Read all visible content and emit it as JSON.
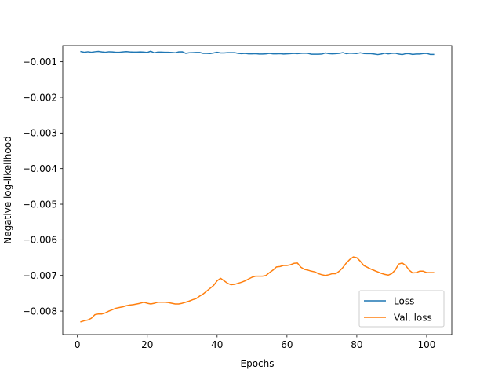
{
  "chart_data": {
    "type": "line",
    "xlabel": "Epochs",
    "ylabel": "Negative log-likelihood",
    "xlim": [
      -4.2,
      107.2
    ],
    "ylim": [
      -0.00866,
      -0.000545
    ],
    "xticks": [
      0,
      20,
      40,
      60,
      80,
      100
    ],
    "xtick_labels": [
      "0",
      "20",
      "40",
      "60",
      "80",
      "100"
    ],
    "yticks": [
      -0.001,
      -0.002,
      -0.003,
      -0.004,
      -0.005,
      -0.006,
      -0.007,
      -0.008
    ],
    "ytick_labels": [
      "−0.001",
      "−0.002",
      "−0.003",
      "−0.004",
      "−0.005",
      "−0.006",
      "−0.007",
      "−0.008"
    ],
    "grid": false,
    "legend_position": "lower-right",
    "series": [
      {
        "name": "Loss",
        "color": "#1f77b4",
        "x": [
          1,
          2,
          3,
          4,
          5,
          6,
          7,
          8,
          9,
          10,
          11,
          12,
          13,
          14,
          15,
          16,
          17,
          18,
          19,
          20,
          21,
          22,
          23,
          24,
          25,
          26,
          27,
          28,
          29,
          30,
          31,
          32,
          33,
          34,
          35,
          36,
          37,
          38,
          39,
          40,
          41,
          42,
          43,
          44,
          45,
          46,
          47,
          48,
          49,
          50,
          51,
          52,
          53,
          54,
          55,
          56,
          57,
          58,
          59,
          60,
          61,
          62,
          63,
          64,
          65,
          66,
          67,
          68,
          69,
          70,
          71,
          72,
          73,
          74,
          75,
          76,
          77,
          78,
          79,
          80,
          81,
          82,
          83,
          84,
          85,
          86,
          87,
          88,
          89,
          90,
          91,
          92,
          93,
          94,
          95,
          96,
          97,
          98,
          99,
          100,
          101,
          102
        ],
        "values": [
          -0.000715,
          -0.000735,
          -0.00072,
          -0.000735,
          -0.00072,
          -0.00071,
          -0.000725,
          -0.000735,
          -0.00072,
          -0.000725,
          -0.000735,
          -0.000735,
          -0.000725,
          -0.000715,
          -0.000725,
          -0.00073,
          -0.00073,
          -0.000725,
          -0.00073,
          -0.00074,
          -0.000705,
          -0.00075,
          -0.00073,
          -0.00073,
          -0.000735,
          -0.000735,
          -0.00074,
          -0.00075,
          -0.000725,
          -0.00072,
          -0.000765,
          -0.00075,
          -0.000745,
          -0.00074,
          -0.00074,
          -0.000765,
          -0.000765,
          -0.00077,
          -0.000755,
          -0.000735,
          -0.000755,
          -0.000755,
          -0.000745,
          -0.000745,
          -0.000745,
          -0.000765,
          -0.000775,
          -0.000765,
          -0.00078,
          -0.00078,
          -0.000775,
          -0.000785,
          -0.000785,
          -0.00078,
          -0.000765,
          -0.00078,
          -0.00078,
          -0.000775,
          -0.000785,
          -0.00078,
          -0.000775,
          -0.000765,
          -0.000775,
          -0.000765,
          -0.00076,
          -0.000765,
          -0.00079,
          -0.00079,
          -0.00079,
          -0.000785,
          -0.000755,
          -0.000775,
          -0.00078,
          -0.000775,
          -0.000765,
          -0.000745,
          -0.000775,
          -0.00076,
          -0.000765,
          -0.00077,
          -0.00075,
          -0.00077,
          -0.000775,
          -0.000775,
          -0.000785,
          -0.0008,
          -0.000785,
          -0.00076,
          -0.00078,
          -0.000765,
          -0.00076,
          -0.000785,
          -0.0008,
          -0.000775,
          -0.000775,
          -0.000795,
          -0.000785,
          -0.000785,
          -0.00077,
          -0.000765,
          -0.000795,
          -0.000795
        ]
      },
      {
        "name": "Val. loss",
        "color": "#ff7f0e",
        "x": [
          1,
          2,
          3,
          4,
          5,
          6,
          7,
          8,
          9,
          10,
          11,
          12,
          13,
          14,
          15,
          16,
          17,
          18,
          19,
          20,
          21,
          22,
          23,
          24,
          25,
          26,
          27,
          28,
          29,
          30,
          31,
          32,
          33,
          34,
          35,
          36,
          37,
          38,
          39,
          40,
          41,
          42,
          43,
          44,
          45,
          46,
          47,
          48,
          49,
          50,
          51,
          52,
          53,
          54,
          55,
          56,
          57,
          58,
          59,
          60,
          61,
          62,
          63,
          64,
          65,
          66,
          67,
          68,
          69,
          70,
          71,
          72,
          73,
          74,
          75,
          76,
          77,
          78,
          79,
          80,
          81,
          82,
          83,
          84,
          85,
          86,
          87,
          88,
          89,
          90,
          91,
          92,
          93,
          94,
          95,
          96,
          97,
          98,
          99,
          100,
          101,
          102
        ],
        "values": [
          -0.0083,
          -0.00827,
          -0.00825,
          -0.0082,
          -0.0081,
          -0.00808,
          -0.00808,
          -0.00805,
          -0.008,
          -0.00796,
          -0.00792,
          -0.0079,
          -0.00788,
          -0.00785,
          -0.00783,
          -0.00782,
          -0.0078,
          -0.00778,
          -0.00775,
          -0.00778,
          -0.0078,
          -0.00778,
          -0.00775,
          -0.00775,
          -0.00775,
          -0.00776,
          -0.00778,
          -0.0078,
          -0.0078,
          -0.00778,
          -0.00775,
          -0.00772,
          -0.00768,
          -0.00765,
          -0.00758,
          -0.00752,
          -0.00744,
          -0.00736,
          -0.00728,
          -0.00715,
          -0.00708,
          -0.00715,
          -0.00722,
          -0.00726,
          -0.00725,
          -0.00722,
          -0.00719,
          -0.00715,
          -0.0071,
          -0.00705,
          -0.00702,
          -0.00702,
          -0.00702,
          -0.007,
          -0.00692,
          -0.00685,
          -0.00676,
          -0.00675,
          -0.00672,
          -0.00672,
          -0.0067,
          -0.00666,
          -0.00665,
          -0.00677,
          -0.00683,
          -0.00685,
          -0.00688,
          -0.0069,
          -0.00695,
          -0.00698,
          -0.007,
          -0.00698,
          -0.00695,
          -0.00695,
          -0.00688,
          -0.00678,
          -0.00665,
          -0.00655,
          -0.00648,
          -0.0065,
          -0.0066,
          -0.00672,
          -0.00677,
          -0.00682,
          -0.00686,
          -0.0069,
          -0.00694,
          -0.00697,
          -0.00699,
          -0.00695,
          -0.00685,
          -0.00668,
          -0.00665,
          -0.00672,
          -0.00685,
          -0.00693,
          -0.00692,
          -0.00688,
          -0.00688,
          -0.00692,
          -0.00692,
          -0.00692
        ]
      }
    ]
  }
}
